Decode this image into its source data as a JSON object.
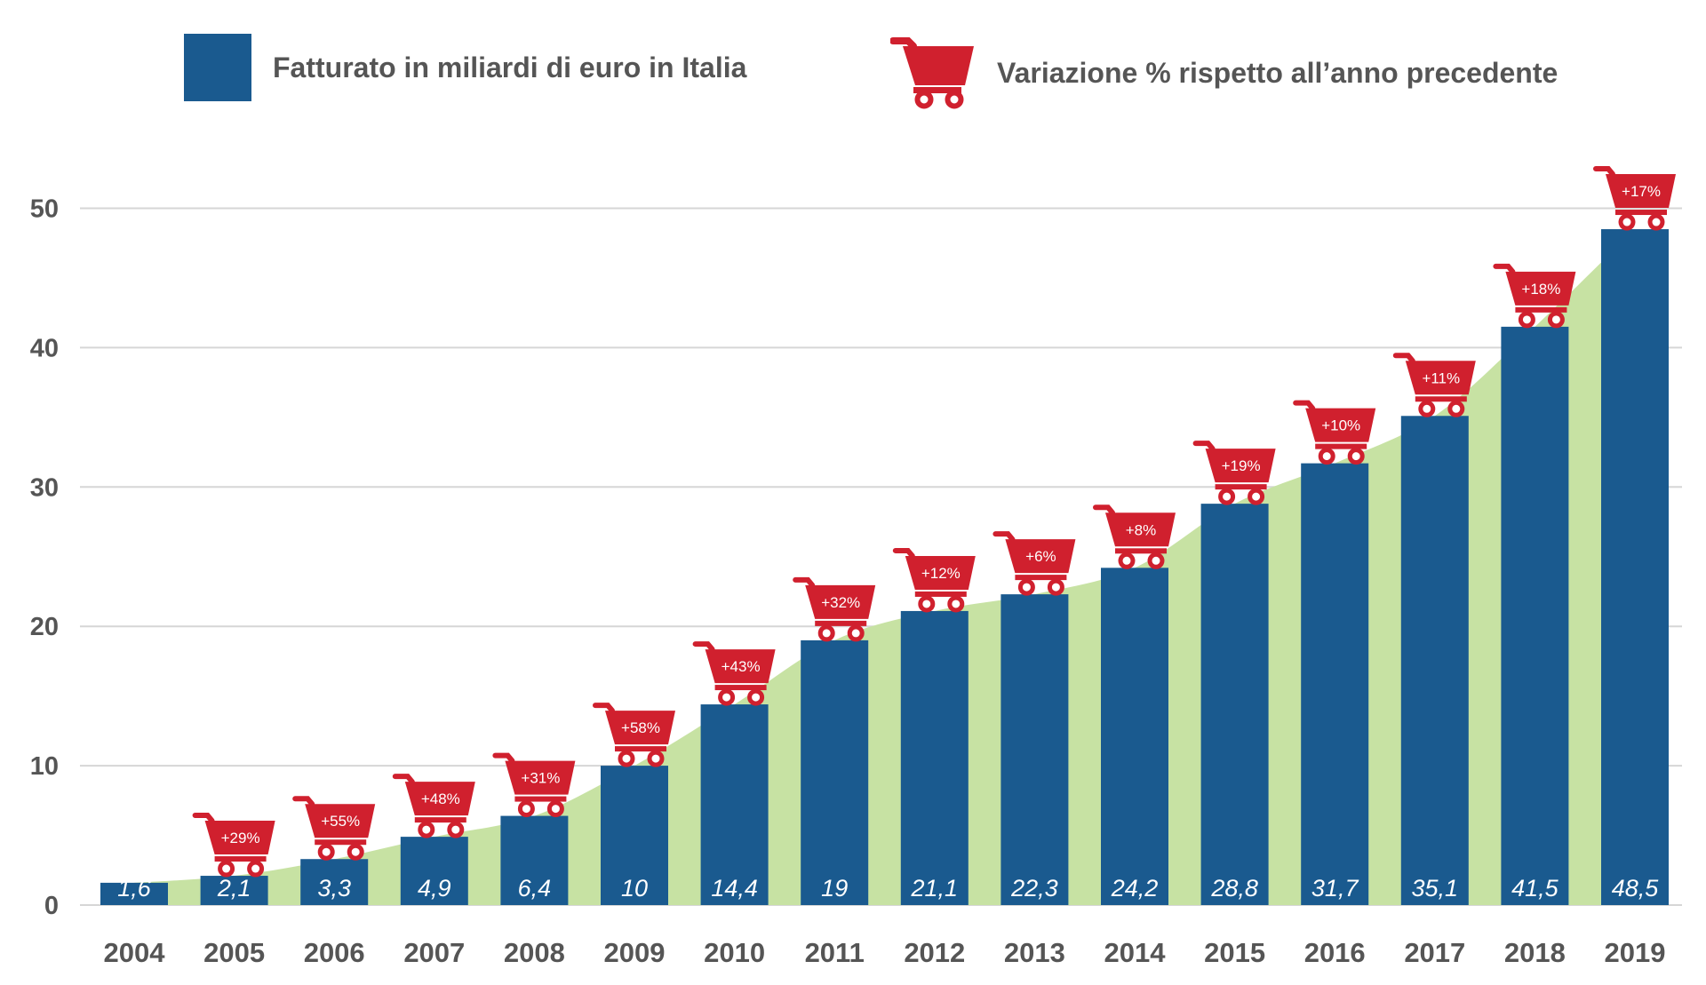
{
  "legend": {
    "bars_label": "Fatturato in miliardi di euro in Italia",
    "bars_icon": "blue-square",
    "change_label": "Variazione % rispetto all’anno precedente",
    "change_icon": "shopping-cart-icon"
  },
  "colors": {
    "bar": "#1a5a8f",
    "area": "#c7e2a3",
    "cart": "#d0202e",
    "grid": "#d6d6d6",
    "text": "#555555"
  },
  "chart_data": {
    "type": "bar",
    "categories": [
      "2004",
      "2005",
      "2006",
      "2007",
      "2008",
      "2009",
      "2010",
      "2011",
      "2012",
      "2013",
      "2014",
      "2015",
      "2016",
      "2017",
      "2018",
      "2019"
    ],
    "values": [
      1.6,
      2.1,
      3.3,
      4.9,
      6.4,
      10,
      14.4,
      19,
      21.1,
      22.3,
      24.2,
      28.8,
      31.7,
      35.1,
      41.5,
      48.5
    ],
    "value_labels": [
      "1,6",
      "2,1",
      "3,3",
      "4,9",
      "6,4",
      "10",
      "14,4",
      "19",
      "21,1",
      "22,3",
      "24,2",
      "28,8",
      "31,7",
      "35,1",
      "41,5",
      "48,5"
    ],
    "pct_change_labels": [
      "",
      "+29%",
      "+55%",
      "+48%",
      "+31%",
      "+58%",
      "+43%",
      "+32%",
      "+12%",
      "+6%",
      "+8%",
      "+19%",
      "+10%",
      "+11%",
      "+18%",
      "+17%"
    ],
    "yticks": [
      0,
      10,
      20,
      30,
      40,
      50
    ],
    "ylim": [
      0,
      52
    ],
    "grid": true,
    "background_area": "smoothed trend under bars",
    "title": "",
    "xlabel": "",
    "ylabel": ""
  }
}
